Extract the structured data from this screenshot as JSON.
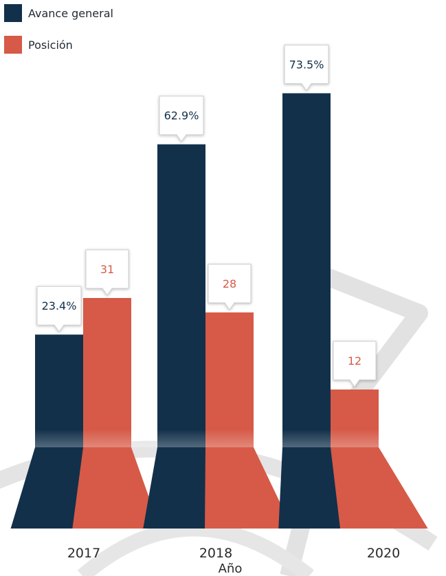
{
  "chart_data": {
    "type": "bar",
    "xlabel": "Año",
    "categories": [
      "2017",
      "2018",
      "2020"
    ],
    "series": [
      {
        "name": "Avance general",
        "color": "#12304a",
        "values": [
          23.4,
          62.9,
          73.5
        ],
        "labels": [
          "23.4%",
          "62.9%",
          "73.5%"
        ]
      },
      {
        "name": "Posición",
        "color": "#d65a47",
        "values": [
          31,
          28,
          12
        ],
        "labels": [
          "31",
          "28",
          "12"
        ]
      }
    ],
    "legend": "top-left",
    "grid": false
  }
}
